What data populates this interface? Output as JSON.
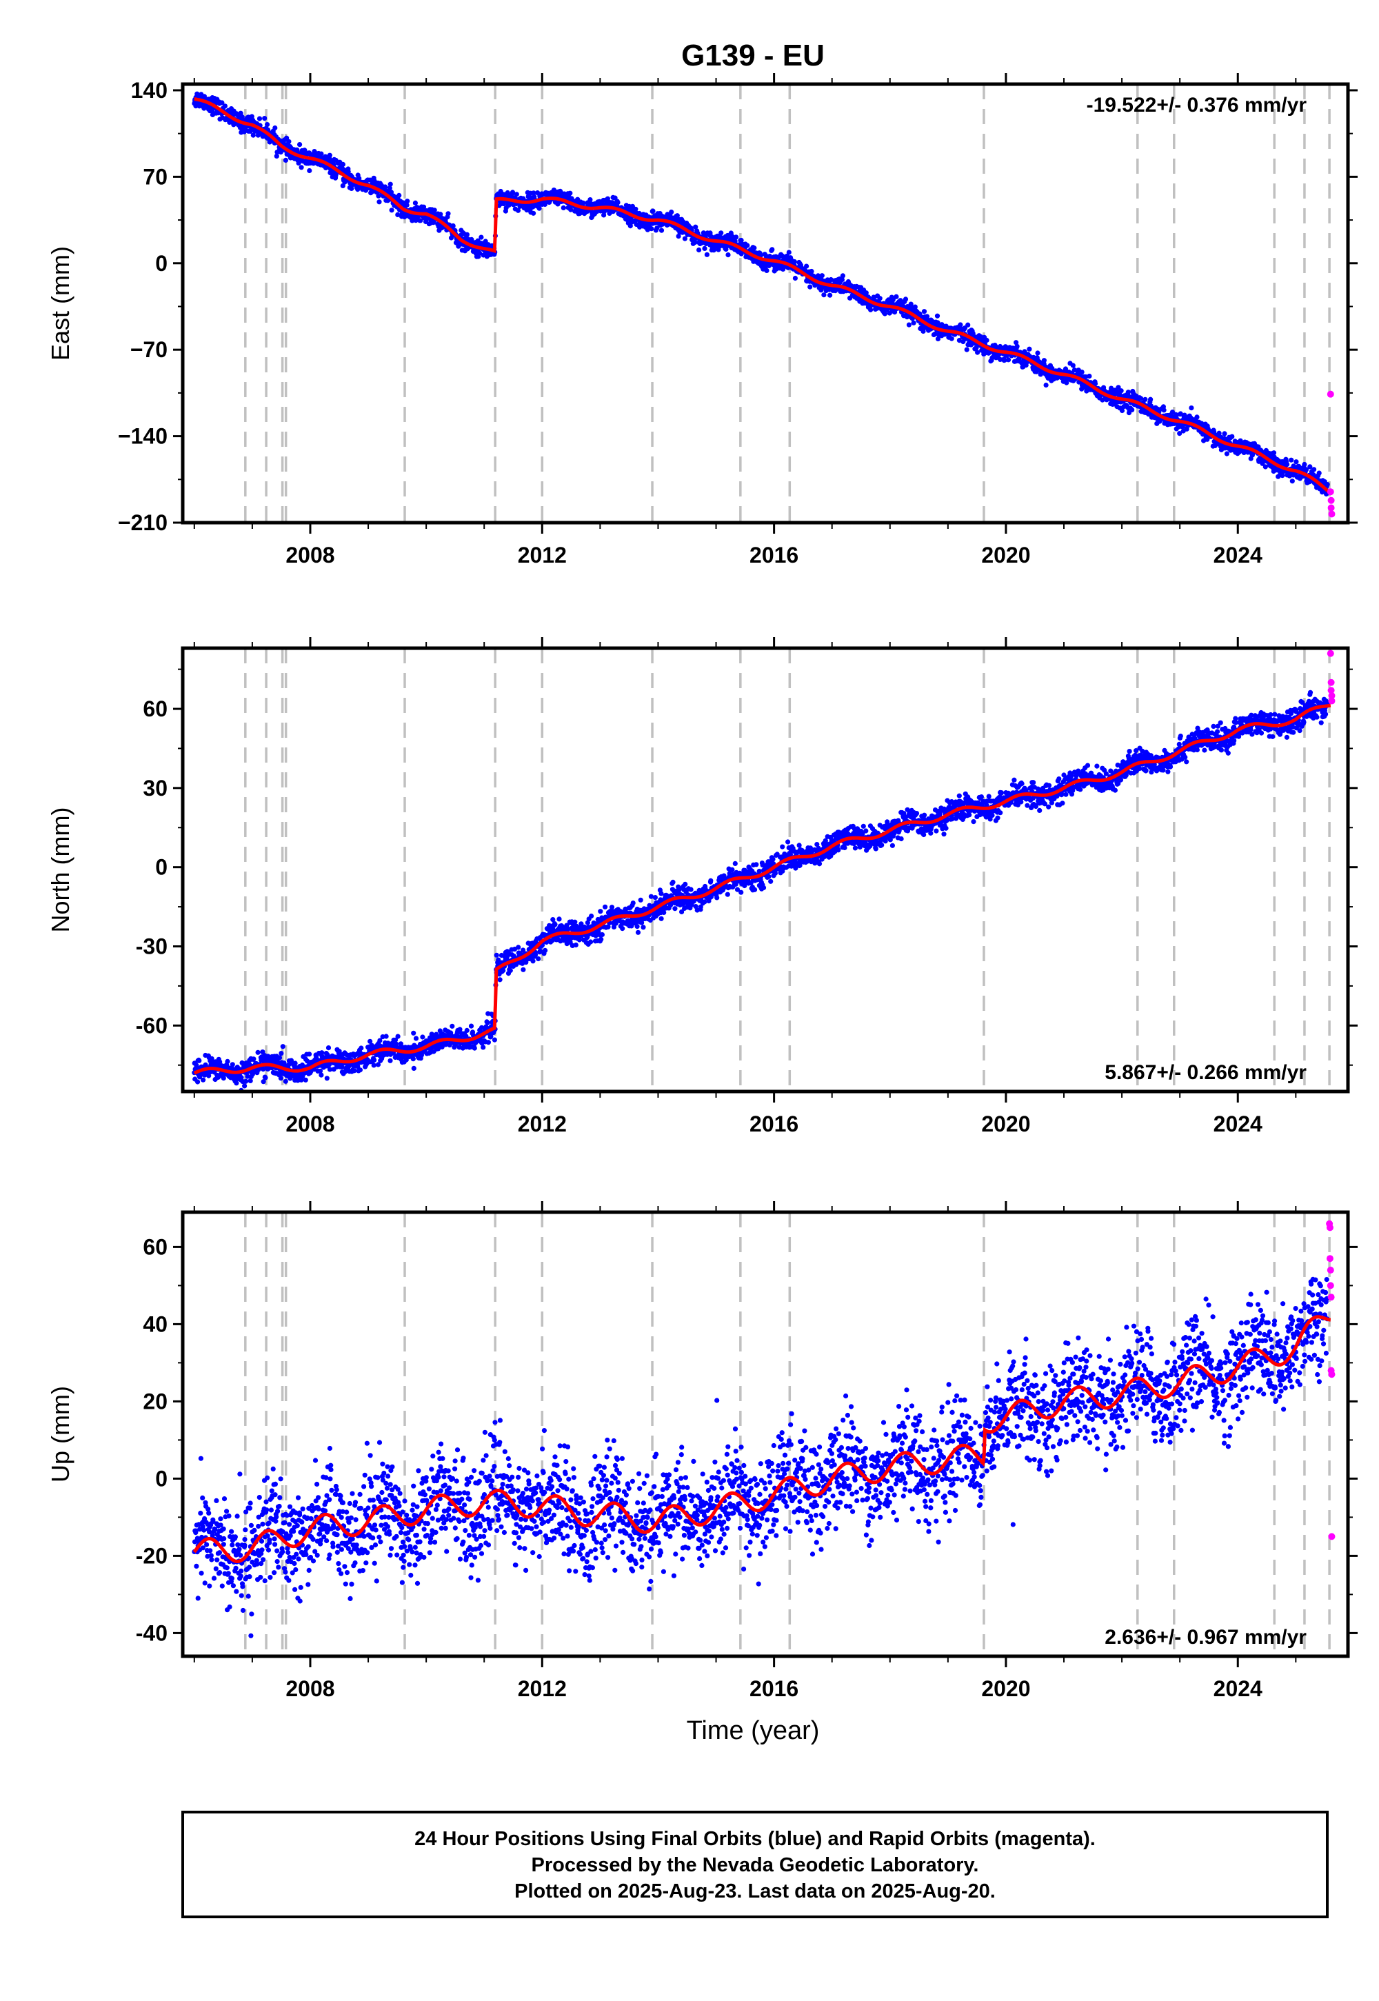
{
  "chart_data": {
    "title": "G139 - EU",
    "x_range": [
      2005.8,
      2025.9
    ],
    "x_ticks": [
      2008,
      2012,
      2016,
      2020,
      2024
    ],
    "xlabel": "Time (year)",
    "offset_years": [
      2006.88,
      2007.24,
      2007.52,
      2007.58,
      2009.63,
      2011.19,
      2012.0,
      2013.9,
      2015.42,
      2016.27,
      2019.62,
      2022.27,
      2022.9,
      2024.63,
      2025.15,
      2025.58
    ],
    "series_colors": {
      "final": "#0000ff",
      "rapid": "#ff00ff",
      "model": "#ff0000",
      "offsets": "#c0c0c0"
    },
    "panels": [
      {
        "id": "east",
        "ylabel": "East (mm)",
        "ylim": [
          -210,
          145
        ],
        "y_ticks": [
          140,
          70,
          0,
          -70,
          -140,
          -210
        ],
        "y_tick_labels": [
          "140",
          "70",
          "0",
          "−70",
          "−140",
          "−210"
        ],
        "rate": "-19.522+/- 0.376 mm/yr",
        "rate_pos": "top-right",
        "model": [
          [
            2006.0,
            133
          ],
          [
            2007.0,
            112
          ],
          [
            2007.5,
            95
          ],
          [
            2008.0,
            85
          ],
          [
            2009.0,
            63
          ],
          [
            2009.6,
            45
          ],
          [
            2010.0,
            40
          ],
          [
            2010.6,
            20
          ],
          [
            2011.19,
            8
          ],
          [
            2011.2,
            50
          ],
          [
            2012.0,
            52
          ],
          [
            2013.0,
            45
          ],
          [
            2014.0,
            35
          ],
          [
            2015.0,
            18
          ],
          [
            2016.0,
            2
          ],
          [
            2017.0,
            -18
          ],
          [
            2018.0,
            -35
          ],
          [
            2019.0,
            -55
          ],
          [
            2020.0,
            -72
          ],
          [
            2021.0,
            -90
          ],
          [
            2022.0,
            -110
          ],
          [
            2023.0,
            -128
          ],
          [
            2024.0,
            -148
          ],
          [
            2025.0,
            -168
          ],
          [
            2025.6,
            -185
          ]
        ],
        "noise": 3.5,
        "seasonal": 2.5,
        "rapid": [
          [
            2025.6,
            -106
          ],
          [
            2025.6,
            -185
          ],
          [
            2025.61,
            -192
          ],
          [
            2025.61,
            -198
          ],
          [
            2025.62,
            -203
          ]
        ]
      },
      {
        "id": "north",
        "ylabel": "North (mm)",
        "ylim": [
          -85,
          83
        ],
        "y_ticks": [
          60,
          30,
          0,
          -30,
          -60
        ],
        "y_tick_labels": [
          "60",
          "30",
          "0",
          "-30",
          "-60"
        ],
        "rate": "5.867+/- 0.266 mm/yr",
        "rate_pos": "bottom-right",
        "model": [
          [
            2006.0,
            -78
          ],
          [
            2007.0,
            -76
          ],
          [
            2008.0,
            -76
          ],
          [
            2009.0,
            -71
          ],
          [
            2010.0,
            -68
          ],
          [
            2011.19,
            -62
          ],
          [
            2011.2,
            -40
          ],
          [
            2012.0,
            -28
          ],
          [
            2013.0,
            -22
          ],
          [
            2014.0,
            -15
          ],
          [
            2015.0,
            -8
          ],
          [
            2016.0,
            0
          ],
          [
            2017.0,
            8
          ],
          [
            2018.0,
            14
          ],
          [
            2019.0,
            20
          ],
          [
            2020.0,
            25
          ],
          [
            2021.0,
            30
          ],
          [
            2022.0,
            36
          ],
          [
            2023.0,
            44
          ],
          [
            2024.0,
            52
          ],
          [
            2025.0,
            56
          ],
          [
            2025.6,
            62
          ]
        ],
        "noise": 2.2,
        "seasonal": 1.5,
        "rapid": [
          [
            2025.6,
            81
          ],
          [
            2025.61,
            70
          ],
          [
            2025.61,
            67
          ],
          [
            2025.62,
            65
          ],
          [
            2025.62,
            63
          ]
        ]
      },
      {
        "id": "up",
        "ylabel": "Up (mm)",
        "ylim": [
          -46,
          69
        ],
        "y_ticks": [
          60,
          40,
          20,
          0,
          -20,
          -40
        ],
        "y_tick_labels": [
          "60",
          "40",
          "20",
          "0",
          "-20",
          "-40"
        ],
        "rate": "2.636+/- 0.967 mm/yr",
        "rate_pos": "bottom-right",
        "model": [
          [
            2006.0,
            -19
          ],
          [
            2007.0,
            -18
          ],
          [
            2008.0,
            -13
          ],
          [
            2009.0,
            -11
          ],
          [
            2010.0,
            -8
          ],
          [
            2011.0,
            -6
          ],
          [
            2012.0,
            -7
          ],
          [
            2012.7,
            -9
          ],
          [
            2013.0,
            -9
          ],
          [
            2013.9,
            -11
          ],
          [
            2014.0,
            -11
          ],
          [
            2015.0,
            -8
          ],
          [
            2016.0,
            -4
          ],
          [
            2017.0,
            0
          ],
          [
            2018.0,
            3
          ],
          [
            2019.0,
            5
          ],
          [
            2019.62,
            6
          ],
          [
            2019.63,
            15
          ],
          [
            2020.0,
            16
          ],
          [
            2021.0,
            20
          ],
          [
            2022.0,
            22
          ],
          [
            2023.0,
            25
          ],
          [
            2024.0,
            29
          ],
          [
            2025.0,
            34
          ],
          [
            2025.6,
            43
          ]
        ],
        "noise": 6.5,
        "seasonal": 4,
        "rapid": [
          [
            2025.58,
            66
          ],
          [
            2025.59,
            65
          ],
          [
            2025.59,
            57
          ],
          [
            2025.6,
            54
          ],
          [
            2025.6,
            50
          ],
          [
            2025.61,
            47
          ],
          [
            2025.61,
            28
          ],
          [
            2025.62,
            27
          ],
          [
            2025.62,
            -15
          ]
        ]
      }
    ],
    "footer": [
      "24 Hour Positions Using Final Orbits (blue) and Rapid Orbits (magenta).",
      "Processed by the Nevada Geodetic Laboratory.",
      "Plotted on 2025-Aug-23. Last data on 2025-Aug-20."
    ]
  }
}
